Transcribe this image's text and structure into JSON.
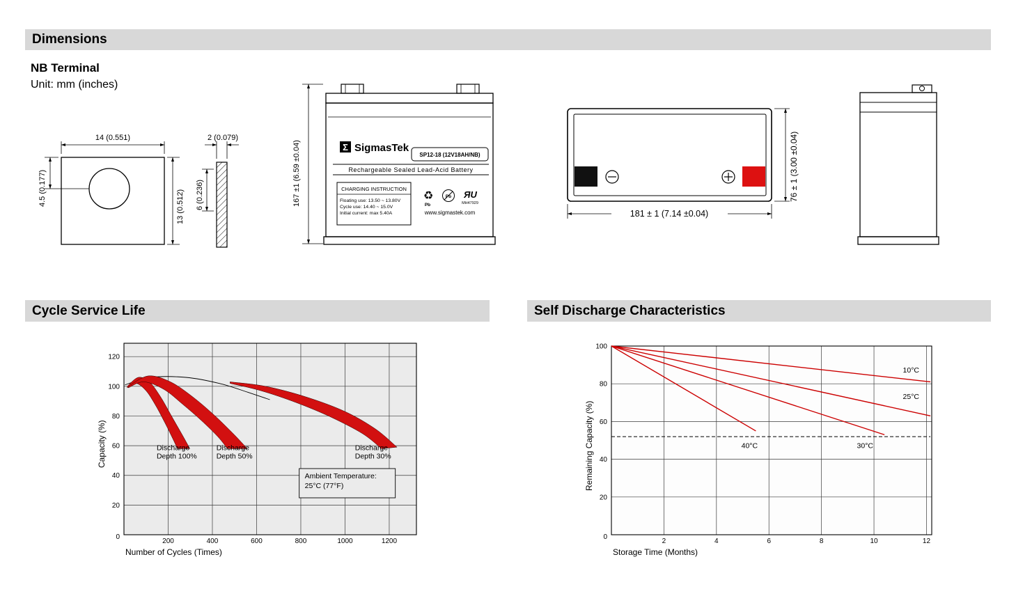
{
  "headers": {
    "dimensions": "Dimensions",
    "cycle_life": "Cycle Service Life",
    "self_discharge": "Self Discharge Characteristics"
  },
  "dimensions_section": {
    "terminal_type": "NB Terminal",
    "unit": "Unit: mm (inches)",
    "terminal_front": {
      "width": "14 (0.551)",
      "hole_offset": "4.5 (0.177)",
      "height": "13 (0.512)"
    },
    "terminal_side": {
      "thickness": "2 (0.079)",
      "height": "6 (0.236)"
    },
    "battery_front": {
      "height": "167 ±1 (6.59 ±0.04)"
    },
    "battery_top": {
      "width": "181 ± 1 (7.14 ±0.04)",
      "depth": "76 ± 1 (3.00 ±0.04)"
    },
    "label": {
      "sigma": "Σ",
      "brand": "SigmasTek",
      "model": "SP12-18 (12V18AH/NB)",
      "subtitle": "Rechargeable Sealed Lead-Acid Battery",
      "charging_title": "CHARGING INSTRUCTION",
      "charging_lines": [
        "Floating use: 13.50 ~ 13.80V",
        "Cycle use: 14.40 ~ 15.0V",
        "Initial current: max 5.40A"
      ],
      "recycle_icon": "♻",
      "pb_label_1": "Pb",
      "pb_label_2": "Pb",
      "ul_mark": "ЯU",
      "ul_code": "MH47929",
      "website": "www.sigmastek.com"
    }
  },
  "colors": {
    "header_bg": "#d8d8d8",
    "red": "#cc0000",
    "band_red": "#d21010",
    "terminal_red": "#dd1111",
    "plot_bg": "#ebebeb"
  },
  "chart_data": [
    {
      "type": "area",
      "title": "Cycle Service Life",
      "xlabel": "Number of Cycles (Times)",
      "ylabel": "Capacity (%)",
      "xlim": [
        0,
        1323
      ],
      "ylim": [
        0,
        129
      ],
      "xticks": [
        0,
        200,
        400,
        600,
        800,
        1000,
        1200
      ],
      "yticks": [
        0,
        20,
        40,
        60,
        80,
        100,
        120
      ],
      "grid": true,
      "legend": "none",
      "bands": [
        {
          "name": "Discharge Depth 100%",
          "upper": [
            [
              15,
              100
            ],
            [
              65,
              106
            ],
            [
              115,
              103
            ],
            [
              165,
              93
            ],
            [
              215,
              80
            ],
            [
              265,
              67
            ],
            [
              298,
              58
            ]
          ],
          "lower": [
            [
              15,
              99
            ],
            [
              55,
              102
            ],
            [
              100,
              97
            ],
            [
              140,
              88
            ],
            [
              180,
              77
            ],
            [
              220,
              65
            ],
            [
              242,
              58
            ]
          ]
        },
        {
          "name": "Discharge Depth 50%",
          "upper": [
            [
              20,
              100
            ],
            [
              110,
              107
            ],
            [
              210,
              103
            ],
            [
              310,
              93
            ],
            [
              405,
              81
            ],
            [
              495,
              68
            ],
            [
              558,
              58
            ]
          ],
          "lower": [
            [
              20,
              99
            ],
            [
              90,
              103
            ],
            [
              180,
              98
            ],
            [
              265,
              88
            ],
            [
              350,
              77
            ],
            [
              425,
              66
            ],
            [
              468,
              58
            ]
          ]
        },
        {
          "name": "Discharge Depth 30%",
          "upper": [
            [
              480,
              103
            ],
            [
              640,
              100
            ],
            [
              820,
              93
            ],
            [
              1000,
              83
            ],
            [
              1140,
              71
            ],
            [
              1235,
              59
            ]
          ],
          "lower": [
            [
              480,
              102
            ],
            [
              620,
              97
            ],
            [
              780,
              89
            ],
            [
              940,
              79
            ],
            [
              1080,
              68
            ],
            [
              1165,
              58
            ]
          ]
        }
      ],
      "envelope": [
        [
          5,
          101
        ],
        [
          120,
          106
        ],
        [
          280,
          106
        ],
        [
          430,
          102
        ],
        [
          560,
          96
        ],
        [
          660,
          91
        ]
      ],
      "labels": [
        {
          "lines": [
            "Discharge",
            "Depth 100%"
          ],
          "x": 148,
          "y": 57
        },
        {
          "lines": [
            "Discharge",
            "Depth 50%"
          ],
          "x": 418,
          "y": 57
        },
        {
          "lines": [
            "Discharge",
            "Depth 30%"
          ],
          "x": 1045,
          "y": 57
        }
      ],
      "note": {
        "lines": [
          "Ambient Temperature:",
          "25°C (77°F)"
        ],
        "x": 818,
        "y": 38
      }
    },
    {
      "type": "line",
      "title": "Self Discharge Characteristics",
      "xlabel": "Storage Time (Months)",
      "ylabel": "Remaining Capacity (%)",
      "xlim": [
        0,
        12.2
      ],
      "ylim": [
        0,
        100
      ],
      "xticks": [
        0,
        2,
        4,
        6,
        8,
        10,
        12
      ],
      "yticks": [
        0,
        20,
        40,
        60,
        80,
        100
      ],
      "grid": true,
      "dashed_threshold": 52,
      "series": [
        {
          "name": "10°C",
          "points": [
            [
              0,
              100
            ],
            [
              12.15,
              81
            ]
          ],
          "label_pos": [
            11.1,
            86
          ]
        },
        {
          "name": "25°C",
          "points": [
            [
              0,
              100
            ],
            [
              12.15,
              63
            ]
          ],
          "label_pos": [
            11.1,
            72
          ]
        },
        {
          "name": "30°C",
          "points": [
            [
              0,
              100
            ],
            [
              10.4,
              53
            ]
          ],
          "label_pos": [
            9.35,
            46
          ]
        },
        {
          "name": "40°C",
          "points": [
            [
              0,
              100
            ],
            [
              5.5,
              55
            ]
          ],
          "label_pos": [
            4.95,
            46
          ]
        }
      ]
    }
  ]
}
